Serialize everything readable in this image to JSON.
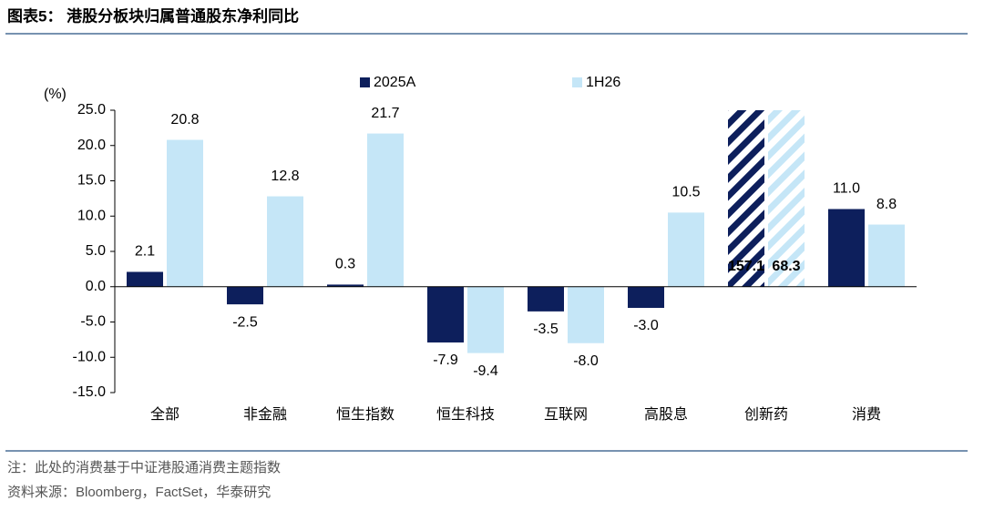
{
  "chart_data": {
    "type": "bar",
    "title": "图表5： 港股分板块归属普通股东净利同比",
    "y_axis_label": "(%)",
    "categories": [
      "全部",
      "非金融",
      "恒生指数",
      "恒生科技",
      "互联网",
      "高股息",
      "创新药",
      "消费"
    ],
    "series": [
      {
        "name": "2025A",
        "color": "#0d1f5c",
        "values": [
          2.1,
          -2.5,
          0.3,
          -7.9,
          -3.5,
          -3.0,
          157.1,
          11.0
        ],
        "value_labels": [
          "2.1",
          "-2.5",
          "0.3",
          "-7.9",
          "-3.5",
          "-3.0",
          "157.1",
          "11.0"
        ]
      },
      {
        "name": "1H26",
        "color": "#c5e6f7",
        "values": [
          20.8,
          12.8,
          21.7,
          -9.4,
          -8.0,
          10.5,
          68.3,
          8.8
        ],
        "value_labels": [
          "20.8",
          "12.8",
          "21.7",
          "-9.4",
          "-8.0",
          "10.5",
          "68.3",
          "8.8"
        ]
      }
    ],
    "ylim": [
      -15,
      25
    ],
    "yticks": [
      {
        "value": -15,
        "label": "-15.0"
      },
      {
        "value": -10,
        "label": "-10.0"
      },
      {
        "value": -5,
        "label": "-5.0"
      },
      {
        "value": 0,
        "label": "0.0"
      },
      {
        "value": 5,
        "label": "5.0"
      },
      {
        "value": 10,
        "label": "10.0"
      },
      {
        "value": 15,
        "label": "15.0"
      },
      {
        "value": 20,
        "label": "20.0"
      },
      {
        "value": 25,
        "label": "25.0"
      }
    ],
    "grid": false,
    "legend": "top",
    "negative_label_color": "#e0302a",
    "notes": [
      "注：此处的消费基于中证港股通消费主题指数",
      "资料来源：Bloomberg，FactSet，华泰研究"
    ]
  }
}
